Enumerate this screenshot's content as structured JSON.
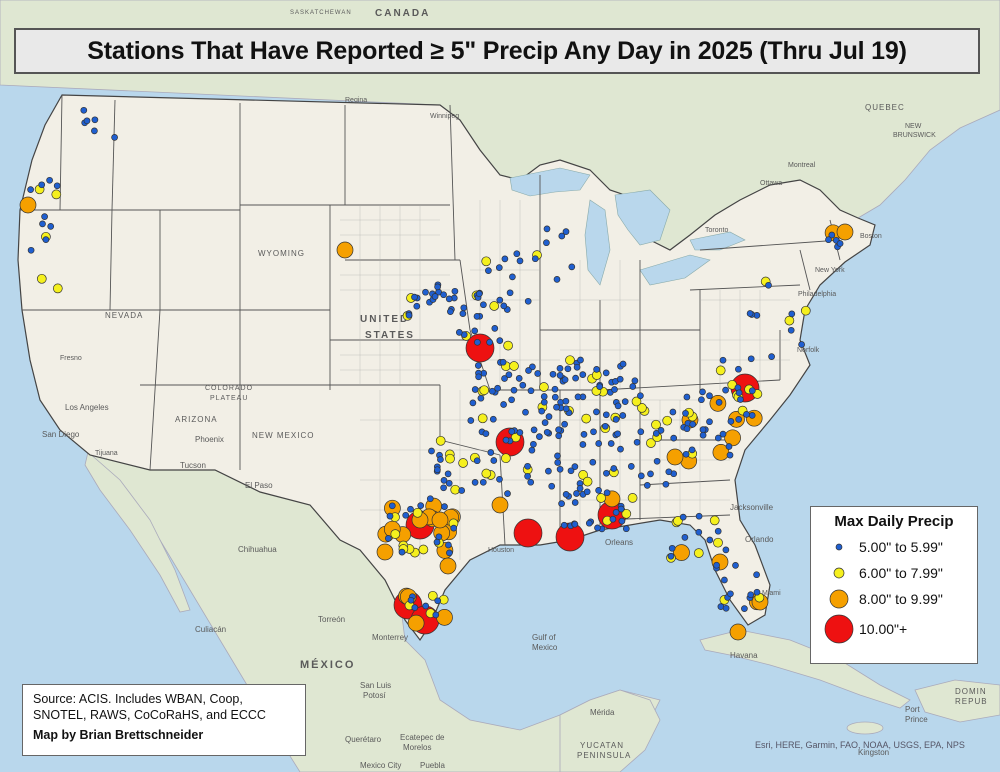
{
  "title": "Stations That Have Reported ≥ 5\" Precip Any Day in 2025 (Thru Jul 19)",
  "legend": {
    "title": "Max Daily Precip",
    "items": [
      {
        "label": "5.00\" to 5.99\"",
        "color": "#1f5fd0",
        "size": "small"
      },
      {
        "label": "6.00\" to 7.99\"",
        "color": "#f5f01e",
        "size": "medium"
      },
      {
        "label": "8.00\" to 9.99\"",
        "color": "#f5a000",
        "size": "large"
      },
      {
        "label": "10.00\"+",
        "color": "#ee1111",
        "size": "xlarge"
      }
    ]
  },
  "source": {
    "line1": "Source: ACIS. Includes WBAN, Coop,",
    "line2": "SNOTEL, RAWS, CoCoRaHS, and ECCC",
    "byline": "Map by Brian Brettschneider"
  },
  "attribution": "Esri, HERE, Garmin, FAO, NOAA, USGS, EPA, NPS",
  "map_labels": {
    "canada": "CANADA",
    "united": "UNITED",
    "states": "STATES",
    "mexico": "MÉXICO",
    "gulf1": "Gulf of",
    "gulf2": "Mexico",
    "saskatchewan": "SASKATCHEWAN",
    "wyoming": "WYOMING",
    "nevada": "NEVADA",
    "arizona": "ARIZONA",
    "new_mexico": "NEW MEXICO",
    "colorado": "COLORADO",
    "plateau": "PLATEAU",
    "los_angeles": "Los Angeles",
    "san_diego": "San Diego",
    "tijuana": "Tijuana",
    "phoenix": "Phoenix",
    "tucson": "Tucson",
    "el_paso": "El Paso",
    "chihuahua": "Chihuahua",
    "torreon": "Torreón",
    "monterrey": "Monterrey",
    "culiacan": "Culiacán",
    "san_luis": "San Luis",
    "potosi": "Potosí",
    "queretaro": "Querétaro",
    "ecatepec": "Ecatepec de",
    "morelos": "Morelos",
    "mexico_city": "Mexico City",
    "puebla": "Puebla",
    "merida": "Mérida",
    "yucatan": "YUCATAN",
    "peninsula": "PENINSULA",
    "havana": "Havana",
    "miami": "Miami",
    "orleans": "Orleans",
    "jacksonville": "Jacksonville",
    "orlando": "Orlando",
    "houston": "Houston",
    "toronto": "Toronto",
    "montreal": "Montreal",
    "ottawa": "Ottawa",
    "regina": "Regina",
    "winnipeg": "Winnipeg",
    "quebec": "QUEBEC",
    "new_brunswick1": "NEW",
    "new_brunswick2": "BRUNSWICK",
    "boston": "Boston",
    "new_york": "New York",
    "philadelphia": "Philadelphia",
    "norfolk": "Norfolk",
    "fresno": "Fresno",
    "kingston": "Kingston",
    "port": "Port",
    "prince": "Prince",
    "dominican1": "DOMIN",
    "dominican2": "REPUB"
  },
  "colors": {
    "ocean": "#b9d7ec",
    "land_us": "#f2efe6",
    "land_other": "#e3e8d6",
    "state_border": "#555555",
    "county_border": "#9a9a9a"
  }
}
